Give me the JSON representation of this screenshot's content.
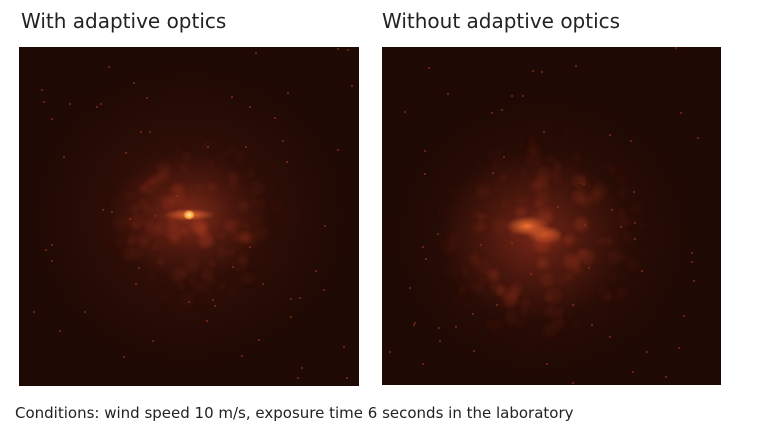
{
  "panels": [
    {
      "title": "With adaptive optics"
    },
    {
      "title": "Without adaptive optics"
    }
  ],
  "caption": "Conditions: wind speed 10 m/s, exposure time 6 seconds in the laboratory"
}
